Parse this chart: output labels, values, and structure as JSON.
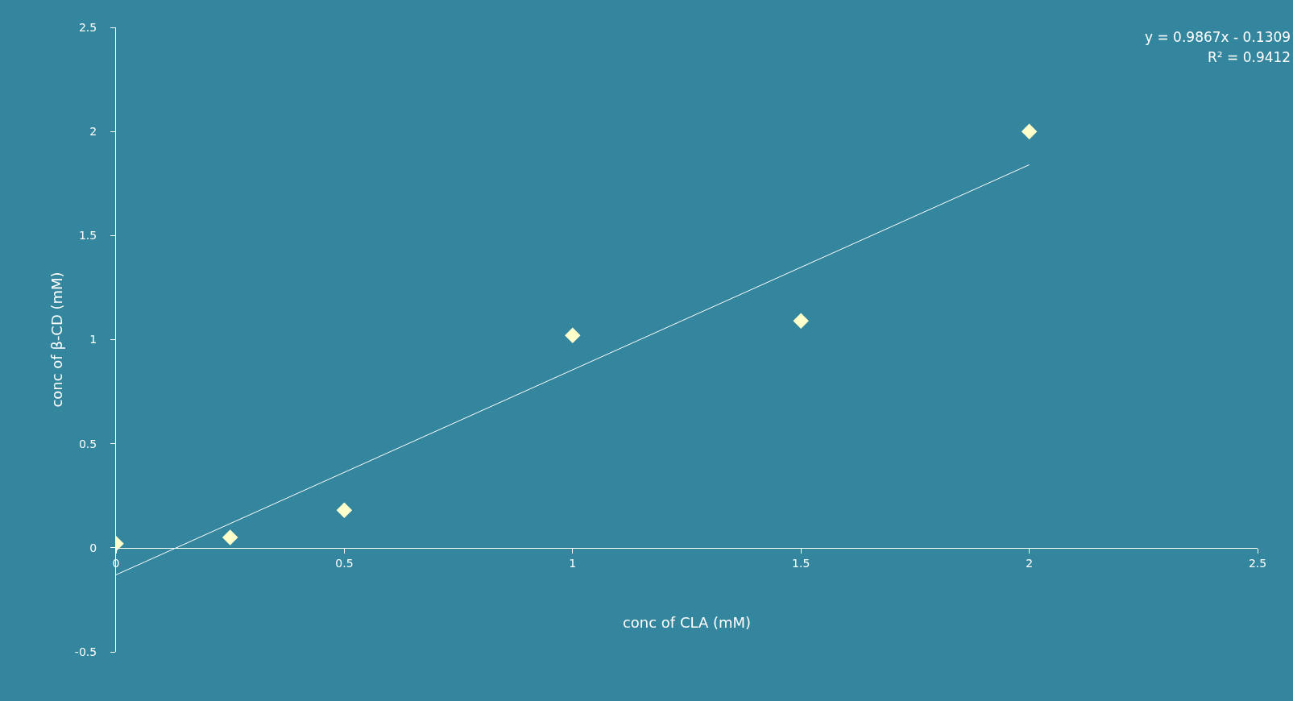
{
  "chart_data": {
    "type": "scatter",
    "xlabel": "conc of CLA (mM)",
    "ylabel": "conc of β-CD (mM)",
    "x": [
      0,
      0.25,
      0.5,
      1,
      1.5,
      2
    ],
    "series": [
      {
        "type": "scatter",
        "color": "#ffffcc",
        "values": [
          0.02,
          0.05,
          0.18,
          1.02,
          1.09,
          2.0
        ],
        "marker": "diamond"
      },
      {
        "type": "line",
        "color": "#ffffff",
        "x": [
          0,
          2
        ],
        "values": [
          -0.13,
          1.84
        ],
        "line_style": "solid"
      }
    ],
    "xlim": [
      0,
      2.5
    ],
    "ylim": [
      -0.5,
      2.5
    ],
    "xticks": [
      0,
      0.5,
      1,
      1.5,
      2,
      2.5
    ],
    "yticks": [
      -0.5,
      0,
      0.5,
      1,
      1.5,
      2,
      2.5
    ],
    "grid": false,
    "annotations": [
      "y = 0.9867x - 0.1309",
      "R² = 0.9412"
    ]
  }
}
